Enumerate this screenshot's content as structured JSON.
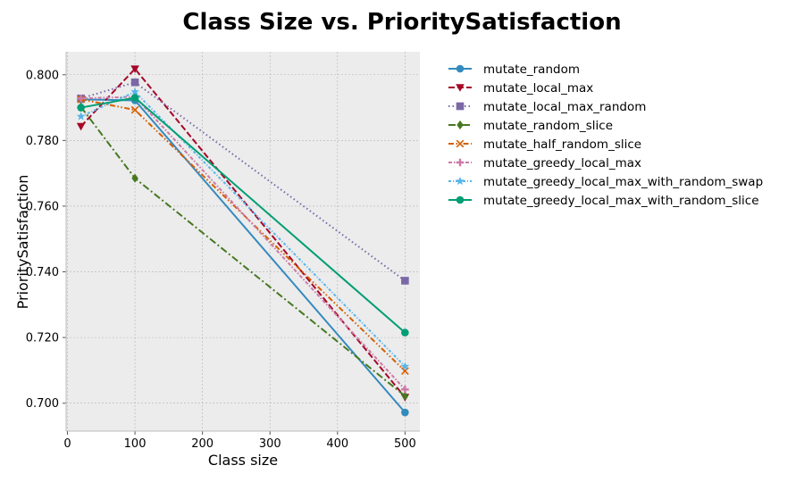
{
  "chart_data": {
    "type": "line",
    "title": "Class Size vs. PrioritySatisfaction",
    "xlabel": "Class size",
    "ylabel": "PrioritySatisfaction",
    "xlim": [
      -2,
      522
    ],
    "ylim": [
      0.6915,
      0.807
    ],
    "xticks": [
      0,
      100,
      200,
      300,
      400,
      500
    ],
    "yticks": [
      0.7,
      0.72,
      0.74,
      0.76,
      0.78,
      0.8
    ],
    "ytick_labels": [
      "0.700",
      "0.720",
      "0.740",
      "0.760",
      "0.780",
      "0.800"
    ],
    "grid": true,
    "legend_position": "outside-right",
    "plot_background": "#ececec",
    "x": [
      20,
      100,
      500
    ],
    "series": [
      {
        "name": "mutate_random",
        "values": [
          0.7925,
          0.7922,
          0.6972
        ],
        "color": "#348abd",
        "dash": "solid",
        "marker": "circle"
      },
      {
        "name": "mutate_local_max",
        "values": [
          0.7843,
          0.8018,
          0.7018
        ],
        "color": "#a60628",
        "dash": "dashed",
        "marker": "triangle-down"
      },
      {
        "name": "mutate_local_max_random",
        "values": [
          0.7928,
          0.7977,
          0.7373
        ],
        "color": "#7a68a6",
        "dash": "dotted",
        "marker": "square"
      },
      {
        "name": "mutate_random_slice",
        "values": [
          0.7902,
          0.7685,
          0.7022
        ],
        "color": "#467821",
        "dash": "dashdot",
        "marker": "diamond"
      },
      {
        "name": "mutate_half_random_slice",
        "values": [
          0.7925,
          0.7893,
          0.7098
        ],
        "color": "#d55e00",
        "dash": "dashdotdot",
        "marker": "x"
      },
      {
        "name": "mutate_greedy_local_max",
        "values": [
          0.7928,
          0.7933,
          0.7042
        ],
        "color": "#cc79a7",
        "dash": "dashdot-wide",
        "marker": "plus"
      },
      {
        "name": "mutate_greedy_local_max_with_random_swap",
        "values": [
          0.7873,
          0.7948,
          0.7112
        ],
        "color": "#56b4e9",
        "dash": "dashdot-fine",
        "marker": "star"
      },
      {
        "name": "mutate_greedy_local_max_with_random_slice",
        "values": [
          0.79,
          0.793,
          0.7215
        ],
        "color": "#009e73",
        "dash": "solid",
        "marker": "circle"
      }
    ]
  }
}
